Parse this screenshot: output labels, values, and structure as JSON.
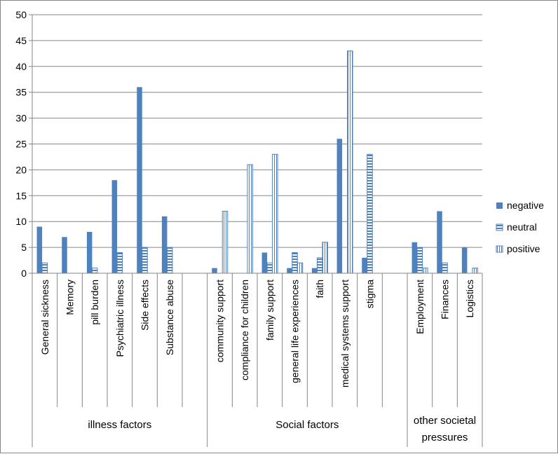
{
  "chart_data": {
    "type": "bar",
    "title": "",
    "xlabel": "",
    "ylabel": "",
    "ylim": [
      0,
      50
    ],
    "yticks": [
      0,
      5,
      10,
      15,
      20,
      25,
      30,
      35,
      40,
      45,
      50
    ],
    "grid": true,
    "legend_position": "right",
    "colors": {
      "negative": "#4F81BD",
      "neutral": "#4F81BD",
      "positive": "#4F81BD"
    },
    "slots": [
      "General sickness",
      "Memory",
      "pill burden",
      "Psychiatric illness",
      "Side effects",
      "Substance abuse",
      "",
      "community support",
      "compliance for children",
      "family support",
      "general life experiences",
      "faith",
      "medical systems support",
      "stigma",
      "",
      "Employment",
      "Finances",
      "Logistics"
    ],
    "groups": [
      {
        "label": "illness factors",
        "start": 0,
        "end": 7
      },
      {
        "label": "Social factors",
        "start": 7,
        "end": 15
      },
      {
        "label": "other societal pressures",
        "lines": [
          "other societal",
          "pressures"
        ],
        "start": 15,
        "end": 18
      }
    ],
    "series": [
      {
        "name": "negative",
        "pattern": "solid",
        "values": [
          9,
          7,
          8,
          18,
          36,
          11,
          null,
          1,
          0,
          4,
          1,
          1,
          26,
          3,
          null,
          6,
          12,
          5
        ]
      },
      {
        "name": "neutral",
        "pattern": "horizontal",
        "values": [
          2,
          0,
          1,
          4,
          5,
          5,
          null,
          0,
          0,
          2,
          4,
          3,
          0,
          23,
          null,
          5,
          2,
          0
        ]
      },
      {
        "name": "positive",
        "pattern": "vertical",
        "values": [
          0,
          0,
          0,
          0,
          0,
          0,
          null,
          12,
          21,
          23,
          2,
          6,
          43,
          0,
          null,
          1,
          0,
          1
        ]
      }
    ]
  }
}
